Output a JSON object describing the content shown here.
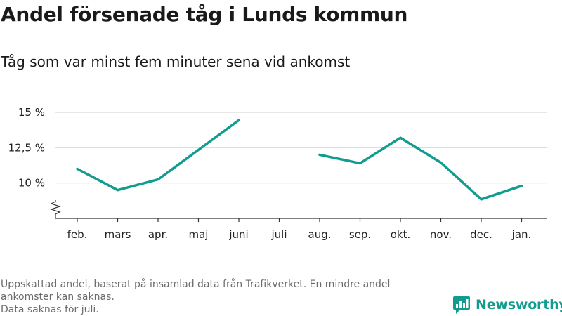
{
  "title": "Andel försenade tåg i Lunds kommun",
  "subtitle": "Tåg som var minst fem minuter sena vid ankomst",
  "footnote": {
    "line1": "Uppskattad andel, baserat på insamlad data från Trafikverket. En mindre andel",
    "line2": "ankomster kan saknas.",
    "line3": "Data saknas för juli."
  },
  "brand": {
    "name": "Newsworthy",
    "color": "#129c8f"
  },
  "colors": {
    "line": "#129c8f",
    "grid": "#d9d9d9",
    "axis": "#333333"
  },
  "chart_data": {
    "type": "line",
    "title": "Andel försenade tåg i Lunds kommun",
    "subtitle": "Tåg som var minst fem minuter sena vid ankomst",
    "categories": [
      "feb.",
      "mars",
      "apr.",
      "maj",
      "juni",
      "juli",
      "aug.",
      "sep.",
      "okt.",
      "nov.",
      "dec.",
      "jan."
    ],
    "series": [
      {
        "values": [
          11.0,
          9.5,
          10.25,
          12.35,
          14.45,
          null,
          12.0,
          11.4,
          13.2,
          11.45,
          8.85,
          9.8
        ]
      }
    ],
    "yticks": [
      10,
      12.5,
      15
    ],
    "ytick_labels": [
      "10 %",
      "12,5 %",
      "15 %"
    ],
    "ylim": [
      7.5,
      15
    ],
    "axis_break": true,
    "grid": true,
    "legend": "none"
  }
}
